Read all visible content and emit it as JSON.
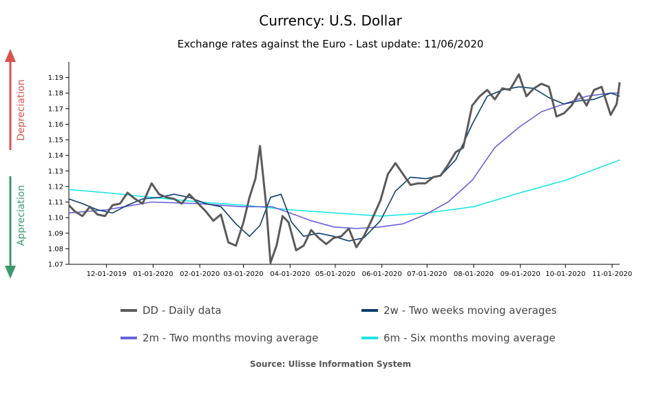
{
  "title": "Currency: U.S. Dollar",
  "subtitle": "Exchange rates against the Euro - Last update: 11/06/2020",
  "side_labels": {
    "up": "Depreciation",
    "down": "Appreciation",
    "up_color": "#d9534f",
    "down_color": "#3c9a6a"
  },
  "source": "Source: Ulisse Information System",
  "chart_data": {
    "type": "line",
    "x_tick_labels": [
      "12-01-2019",
      "01-01-2020",
      "02-01-2020",
      "03-01-2020",
      "04-01-2020",
      "05-01-2020",
      "06-01-2020",
      "07-01-2020",
      "08-01-2020",
      "09-01-2020",
      "10-01-2020",
      "11-01-2020"
    ],
    "x_tick_dates": [
      "2019-12-01",
      "2020-01-01",
      "2020-02-01",
      "2020-03-01",
      "2020-04-01",
      "2020-05-01",
      "2020-06-01",
      "2020-07-01",
      "2020-08-01",
      "2020-09-01",
      "2020-10-01",
      "2020-11-01"
    ],
    "xlim": [
      "2019-11-06",
      "2020-11-06"
    ],
    "ylim": [
      1.07,
      1.2
    ],
    "y_ticks": [
      "1.07",
      "1.08",
      "1.09",
      "1.10",
      "1.11",
      "1.12",
      "1.13",
      "1.14",
      "1.15",
      "1.16",
      "1.17",
      "1.18",
      "1.19"
    ],
    "legend": [
      {
        "label": "DD - Daily data",
        "color": "#5a5a5a"
      },
      {
        "label": "2w - Two weeks moving averages",
        "color": "#0b3d6e"
      },
      {
        "label": "2m - Two months moving average",
        "color": "#6a5fdc"
      },
      {
        "label": "6m - Six months moving average",
        "color": "#1de5e5"
      }
    ],
    "series": [
      {
        "name": "DD - Daily data",
        "color": "#5a5a5a",
        "x": [
          "2019-11-06",
          "2019-11-10",
          "2019-11-15",
          "2019-11-20",
          "2019-11-25",
          "2019-11-30",
          "2019-12-05",
          "2019-12-10",
          "2019-12-15",
          "2019-12-20",
          "2019-12-25",
          "2019-12-31",
          "2020-01-05",
          "2020-01-10",
          "2020-01-15",
          "2020-01-20",
          "2020-01-25",
          "2020-01-31",
          "2020-02-05",
          "2020-02-10",
          "2020-02-15",
          "2020-02-20",
          "2020-02-25",
          "2020-03-01",
          "2020-03-05",
          "2020-03-09",
          "2020-03-12",
          "2020-03-16",
          "2020-03-19",
          "2020-03-23",
          "2020-03-27",
          "2020-03-31",
          "2020-04-05",
          "2020-04-10",
          "2020-04-15",
          "2020-04-20",
          "2020-04-25",
          "2020-04-30",
          "2020-05-05",
          "2020-05-10",
          "2020-05-15",
          "2020-05-20",
          "2020-05-25",
          "2020-05-31",
          "2020-06-05",
          "2020-06-10",
          "2020-06-15",
          "2020-06-20",
          "2020-06-25",
          "2020-06-30",
          "2020-07-05",
          "2020-07-10",
          "2020-07-15",
          "2020-07-20",
          "2020-07-25",
          "2020-07-31",
          "2020-08-05",
          "2020-08-10",
          "2020-08-15",
          "2020-08-20",
          "2020-08-25",
          "2020-08-31",
          "2020-09-05",
          "2020-09-10",
          "2020-09-15",
          "2020-09-20",
          "2020-09-25",
          "2020-09-30",
          "2020-10-05",
          "2020-10-10",
          "2020-10-15",
          "2020-10-20",
          "2020-10-25",
          "2020-10-31",
          "2020-11-04",
          "2020-11-06"
        ],
        "values": [
          1.108,
          1.104,
          1.101,
          1.107,
          1.102,
          1.101,
          1.108,
          1.109,
          1.116,
          1.112,
          1.109,
          1.122,
          1.115,
          1.113,
          1.112,
          1.109,
          1.115,
          1.109,
          1.104,
          1.098,
          1.102,
          1.084,
          1.082,
          1.097,
          1.113,
          1.125,
          1.146,
          1.109,
          1.071,
          1.082,
          1.101,
          1.097,
          1.079,
          1.082,
          1.092,
          1.087,
          1.083,
          1.087,
          1.088,
          1.093,
          1.081,
          1.088,
          1.098,
          1.111,
          1.128,
          1.135,
          1.128,
          1.121,
          1.122,
          1.122,
          1.126,
          1.127,
          1.134,
          1.142,
          1.145,
          1.172,
          1.178,
          1.182,
          1.176,
          1.183,
          1.182,
          1.192,
          1.178,
          1.183,
          1.186,
          1.184,
          1.165,
          1.167,
          1.172,
          1.18,
          1.172,
          1.182,
          1.184,
          1.166,
          1.173,
          1.187
        ]
      },
      {
        "name": "2w - Two weeks moving averages",
        "color": "#0b3d6e",
        "x": [
          "2019-11-06",
          "2019-11-15",
          "2019-11-25",
          "2019-12-05",
          "2019-12-15",
          "2019-12-25",
          "2020-01-05",
          "2020-01-15",
          "2020-01-25",
          "2020-02-05",
          "2020-02-15",
          "2020-02-25",
          "2020-03-05",
          "2020-03-12",
          "2020-03-19",
          "2020-03-26",
          "2020-04-02",
          "2020-04-10",
          "2020-04-20",
          "2020-04-30",
          "2020-05-10",
          "2020-05-20",
          "2020-05-31",
          "2020-06-10",
          "2020-06-20",
          "2020-06-30",
          "2020-07-10",
          "2020-07-20",
          "2020-07-31",
          "2020-08-10",
          "2020-08-20",
          "2020-08-31",
          "2020-09-10",
          "2020-09-20",
          "2020-09-30",
          "2020-10-10",
          "2020-10-20",
          "2020-10-31",
          "2020-11-06"
        ],
        "values": [
          1.112,
          1.109,
          1.105,
          1.103,
          1.108,
          1.112,
          1.113,
          1.115,
          1.113,
          1.109,
          1.107,
          1.096,
          1.088,
          1.095,
          1.113,
          1.115,
          1.097,
          1.088,
          1.09,
          1.088,
          1.085,
          1.087,
          1.098,
          1.117,
          1.126,
          1.125,
          1.127,
          1.137,
          1.16,
          1.178,
          1.182,
          1.184,
          1.183,
          1.177,
          1.173,
          1.175,
          1.176,
          1.18,
          1.178
        ]
      },
      {
        "name": "2m - Two months moving average",
        "color": "#6a5fdc",
        "x": [
          "2019-11-06",
          "2019-12-01",
          "2019-12-31",
          "2020-01-31",
          "2020-02-29",
          "2020-03-20",
          "2020-04-01",
          "2020-04-15",
          "2020-04-30",
          "2020-05-15",
          "2020-05-31",
          "2020-06-15",
          "2020-06-30",
          "2020-07-15",
          "2020-07-31",
          "2020-08-15",
          "2020-08-31",
          "2020-09-15",
          "2020-09-30",
          "2020-10-15",
          "2020-10-31",
          "2020-11-06"
        ],
        "values": [
          1.103,
          1.105,
          1.11,
          1.109,
          1.107,
          1.107,
          1.103,
          1.098,
          1.094,
          1.093,
          1.094,
          1.096,
          1.102,
          1.11,
          1.124,
          1.145,
          1.158,
          1.168,
          1.173,
          1.178,
          1.18,
          1.18
        ]
      },
      {
        "name": "6m - Six months moving average",
        "color": "#1de5e5",
        "x": [
          "2019-11-06",
          "2019-12-01",
          "2020-01-01",
          "2020-02-01",
          "2020-03-01",
          "2020-04-01",
          "2020-05-01",
          "2020-06-01",
          "2020-07-01",
          "2020-08-01",
          "2020-09-01",
          "2020-10-01",
          "2020-11-06"
        ],
        "values": [
          1.118,
          1.116,
          1.113,
          1.11,
          1.108,
          1.105,
          1.103,
          1.101,
          1.103,
          1.107,
          1.116,
          1.124,
          1.137
        ]
      }
    ]
  }
}
